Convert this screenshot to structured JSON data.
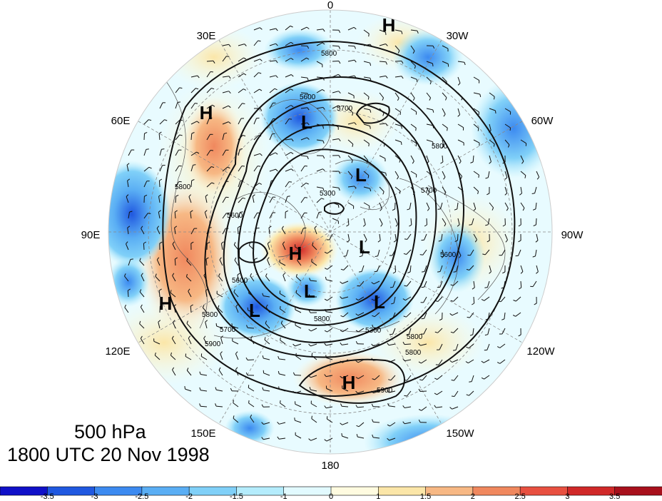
{
  "map": {
    "level": "500 hPa",
    "datetime": "1800 UTC 20 Nov 1998",
    "longitude_labels": [
      "0",
      "30W",
      "60W",
      "90W",
      "120W",
      "150W",
      "180",
      "150E",
      "120E",
      "90E",
      "60E",
      "30E"
    ],
    "pressure_centers": [
      {
        "type": "H",
        "region": "north near 0/30W"
      },
      {
        "type": "H",
        "region": "60E mid-latitude"
      },
      {
        "type": "H",
        "region": "120E subtropics"
      },
      {
        "type": "H",
        "region": "near pole, Siberian side"
      },
      {
        "type": "H",
        "region": "north Pacific near 180"
      },
      {
        "type": "L",
        "region": "Scandinavia"
      },
      {
        "type": "L",
        "region": "Greenland"
      },
      {
        "type": "L",
        "region": "Canadian Arctic"
      },
      {
        "type": "L",
        "region": "Alaska/Bering"
      },
      {
        "type": "L",
        "region": "East Siberia"
      },
      {
        "type": "L",
        "region": "Canada west"
      }
    ],
    "contour_labels": [
      "5800",
      "5600",
      "5700",
      "5800",
      "5300",
      "5700",
      "5800",
      "5600",
      "5300",
      "5800",
      "5800",
      "5800",
      "5900",
      "5900",
      "5800",
      "5600",
      "5700",
      "5600"
    ],
    "colorbar": {
      "ticks": [
        "-3.5",
        "-3",
        "-2.5",
        "-2",
        "-1.5",
        "-1",
        "0",
        "1",
        "1.5",
        "2",
        "2.5",
        "3",
        "3.5"
      ],
      "colors": [
        "#1010c8",
        "#2058e0",
        "#3c8af0",
        "#5aaef4",
        "#80d0f8",
        "#b4ecfc",
        "#e2faff",
        "#fffbe0",
        "#fbe6a8",
        "#f7b884",
        "#f0885e",
        "#e85040",
        "#d02828",
        "#a8101c"
      ]
    }
  }
}
